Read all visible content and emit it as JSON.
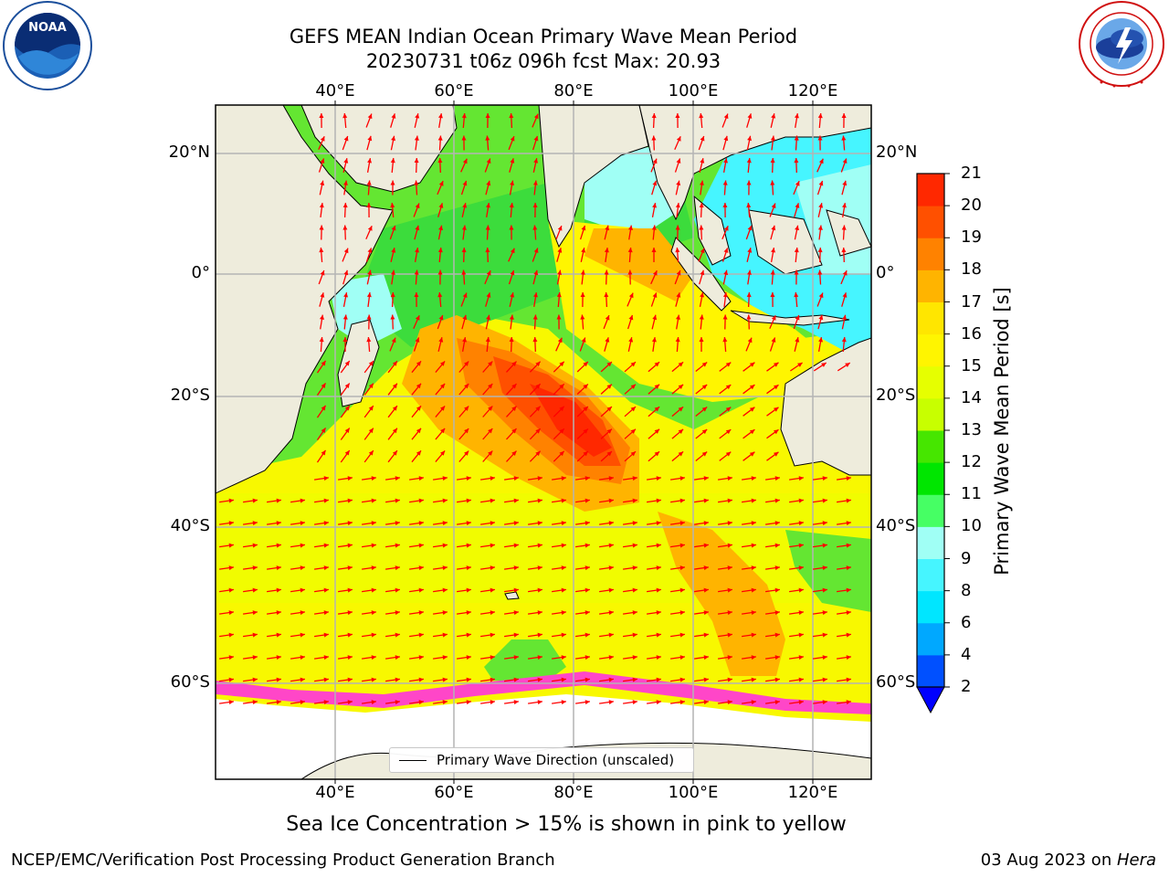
{
  "header": {
    "title_line1": "GEFS MEAN Indian Ocean Primary Wave Mean Period",
    "title_line2": "20230731 t06z 096h fcst   Max: 20.93"
  },
  "logos": {
    "left": {
      "name": "NOAA",
      "ring_text": "NATIONAL OCEANIC AND ATMOSPHERIC ADMINISTRATION · U.S. DEPARTMENT OF COMMERCE"
    },
    "right": {
      "name": "NATIONAL WEATHER SERVICE"
    }
  },
  "map": {
    "lon_ticks_top": [
      "40°E",
      "60°E",
      "80°E",
      "100°E",
      "120°E"
    ],
    "lon_ticks_bottom": [
      "40°E",
      "60°E",
      "80°E",
      "100°E",
      "120°E"
    ],
    "lat_ticks_left": [
      "20°N",
      "0°",
      "20°S",
      "40°S",
      "60°S"
    ],
    "lat_ticks_right": [
      "20°N",
      "0°",
      "20°S",
      "40°S",
      "60°S"
    ],
    "legend": "Primary Wave Direction (unscaled)",
    "colors": {
      "land": "#eeecdc",
      "arrow": "#ff0000",
      "grid": "#b4b4b4"
    }
  },
  "colorbar": {
    "label": "Primary Wave Mean Period [s]",
    "ticks": [
      "2",
      "4",
      "6",
      "8",
      "9",
      "10",
      "11",
      "12",
      "13",
      "14",
      "15",
      "16",
      "17",
      "18",
      "19",
      "20",
      "21"
    ],
    "colors": [
      "#0050ff",
      "#00a8ff",
      "#00e6ff",
      "#46f5ff",
      "#a0fff5",
      "#46ff64",
      "#00e600",
      "#46e600",
      "#c8ff00",
      "#e6ff00",
      "#fff500",
      "#ffe600",
      "#ffb400",
      "#ff8200",
      "#ff5000",
      "#ff2800"
    ],
    "extend_color": "#0000ff"
  },
  "chart_data": {
    "type": "heatmap",
    "title": "GEFS MEAN Indian Ocean Primary Wave Mean Period",
    "subtitle": "20230731 t06z 096h fcst   Max: 20.93",
    "variable": "Primary Wave Mean Period [s]",
    "max": 20.93,
    "lon_range": [
      20,
      130
    ],
    "lat_range": [
      -72,
      28
    ],
    "levels": [
      2,
      4,
      6,
      8,
      9,
      10,
      11,
      12,
      13,
      14,
      15,
      16,
      17,
      18,
      19,
      20,
      21
    ]
  },
  "notes": {
    "sea_ice": "Sea Ice Concentration > 15% is shown in pink to yellow"
  },
  "footer": {
    "left": "NCEP/EMC/Verification Post Processing Product Generation Branch",
    "right_date": "03 Aug 2023 on ",
    "right_machine": "Hera"
  }
}
